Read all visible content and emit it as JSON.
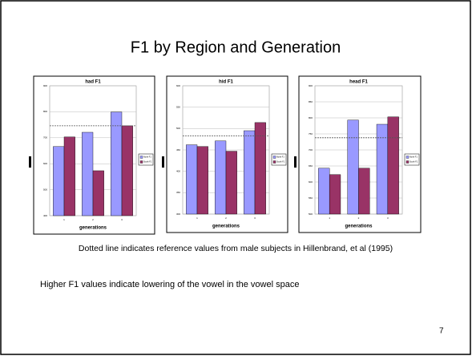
{
  "title": "F1 by Region and Generation",
  "notes": [
    "Dotted line indicates reference values from male subjects in Hillenbrand, et al (1995)",
    "Higher F1 values indicate lowering of the vowel in the vowel space"
  ],
  "page_number": "7",
  "chart_data": [
    {
      "type": "bar",
      "title": "had F1",
      "x_label": "generations",
      "categories": [
        "1",
        "2",
        "3"
      ],
      "series": [
        {
          "name": "North F1",
          "color": "#9999ff",
          "values": [
            666,
            721,
            799
          ]
        },
        {
          "name": "South F1",
          "color": "#993366",
          "values": [
            703,
            573,
            746
          ]
        }
      ],
      "reference": 746,
      "ylim": [
        400,
        900
      ],
      "yticks": [
        400,
        500,
        600,
        700,
        800,
        900
      ],
      "grid": true,
      "legend": "right"
    },
    {
      "type": "bar",
      "title": "hid F1",
      "x_label": "generations",
      "categories": [
        "1",
        "2",
        "3"
      ],
      "series": [
        {
          "name": "North F1",
          "color": "#9999ff",
          "values": [
            462,
            471,
            495
          ]
        },
        {
          "name": "South F1",
          "color": "#993366",
          "values": [
            458,
            447,
            514
          ]
        }
      ],
      "reference": 483,
      "ylim": [
        300,
        600
      ],
      "yticks": [
        300,
        350,
        400,
        450,
        500,
        550,
        600
      ],
      "grid": true,
      "legend": "right"
    },
    {
      "type": "bar",
      "title": "head F1",
      "x_label": "generations",
      "categories": [
        "1",
        "2",
        "3"
      ],
      "series": [
        {
          "name": "North F1",
          "color": "#9999ff",
          "values": [
            643,
            793,
            780
          ]
        },
        {
          "name": "South F1",
          "color": "#993366",
          "values": [
            623,
            643,
            803
          ]
        }
      ],
      "reference": 738,
      "ylim": [
        500,
        900
      ],
      "yticks": [
        500,
        550,
        600,
        650,
        700,
        750,
        800,
        850,
        900
      ],
      "grid": true,
      "legend": "right"
    }
  ]
}
